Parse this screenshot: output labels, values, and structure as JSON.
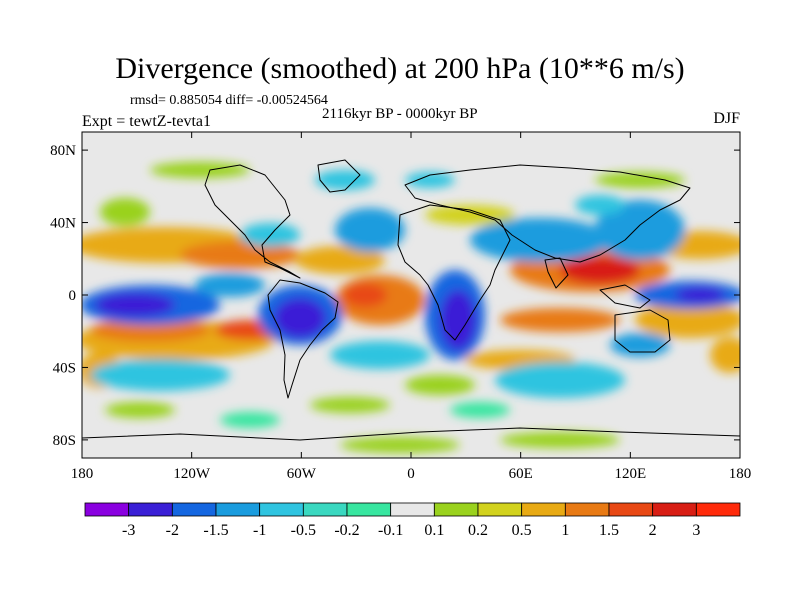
{
  "title": "Divergence (smoothed) at 200 hPa (10**6 m/s)",
  "stats": "rmsd= 0.885054 diff= -0.00524564",
  "period": "2116kyr BP - 0000kyr BP",
  "experiment": "Expt = tewtZ-tevta1",
  "season": "DJF",
  "map": {
    "lon_labels": [
      "180",
      "120W",
      "60W",
      "0",
      "60E",
      "120E",
      "180"
    ],
    "lat_labels": [
      "80N",
      "40N",
      "0",
      "40S",
      "80S"
    ],
    "lon_range": [
      -180,
      180
    ],
    "lat_range": [
      -90,
      90
    ],
    "lon_ticks": [
      -180,
      -120,
      -60,
      0,
      60,
      120,
      180
    ],
    "lat_ticks": [
      80,
      40,
      0,
      -40,
      -80
    ]
  },
  "colorbar": {
    "labels": [
      "-3",
      "-2",
      "-1.5",
      "-1",
      "-0.5",
      "-0.2",
      "-0.1",
      "0.1",
      "0.2",
      "0.5",
      "1",
      "1.5",
      "2",
      "3"
    ],
    "colors": [
      "#8a00e0",
      "#3a1fd6",
      "#1466e0",
      "#1a9cde",
      "#2fc4e0",
      "#3ad8c0",
      "#38e6a0",
      "#e8e8e8",
      "#9ad21e",
      "#d2d21e",
      "#e8aa14",
      "#e87a14",
      "#e84814",
      "#d81e14",
      "#ff2a0a"
    ]
  }
}
